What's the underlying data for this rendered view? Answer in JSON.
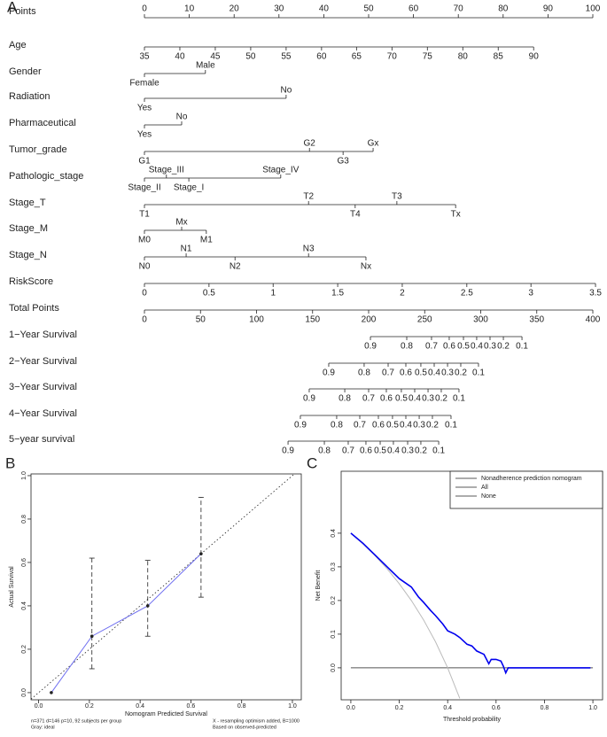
{
  "chart_data": [
    {
      "type": "nomogram",
      "panel_label": "A",
      "points_axis": {
        "label": "Points",
        "lim": [
          0,
          100
        ],
        "ticks": [
          0,
          10,
          20,
          30,
          40,
          50,
          60,
          70,
          80,
          90,
          100
        ]
      },
      "variables": [
        {
          "label": "Age",
          "levels": [
            35,
            40,
            45,
            50,
            55,
            60,
            65,
            70,
            75,
            80,
            85,
            90
          ],
          "points": [
            0,
            7.9,
            15.8,
            23.7,
            31.6,
            39.5,
            47.3,
            55.2,
            63.1,
            71.0,
            78.9,
            86.8
          ]
        },
        {
          "label": "Gender",
          "levels": [
            "Female",
            "Male"
          ],
          "points": [
            0,
            13.6
          ]
        },
        {
          "label": "Radiation",
          "levels": [
            "Yes",
            "No"
          ],
          "points": [
            0,
            31.6
          ]
        },
        {
          "label": "Pharmaceutical",
          "levels": [
            "Yes",
            "No"
          ],
          "points": [
            0,
            8.3
          ]
        },
        {
          "label": "Tumor_grade",
          "levels": [
            "G1",
            "G2",
            "G3",
            "Gx"
          ],
          "points": [
            0,
            36.8,
            44.3,
            51.0
          ]
        },
        {
          "label": "Pathologic_stage",
          "levels": [
            "Stage_II",
            "Stage_III",
            "Stage_I",
            "Stage_IV"
          ],
          "points": [
            0,
            4.9,
            9.9,
            30.4
          ]
        },
        {
          "label": "Stage_T",
          "levels": [
            "T1",
            "T2",
            "T4",
            "T3",
            "Tx"
          ],
          "points": [
            0,
            36.6,
            47.0,
            56.3,
            69.4
          ]
        },
        {
          "label": "Stage_M",
          "levels": [
            "M0",
            "Mx",
            "M1"
          ],
          "points": [
            0,
            8.3,
            13.8
          ]
        },
        {
          "label": "Stage_N",
          "levels": [
            "N0",
            "N1",
            "N2",
            "N3",
            "Nx"
          ],
          "points": [
            0,
            9.3,
            20.2,
            36.6,
            49.4
          ]
        },
        {
          "label": "RiskScore",
          "levels": [
            0,
            0.5,
            1,
            1.5,
            2,
            2.5,
            3,
            3.5
          ],
          "points": [
            0,
            14.4,
            28.7,
            43.1,
            57.5,
            71.9,
            86.2,
            100.6
          ]
        }
      ],
      "total_axis": {
        "label": "Total Points",
        "lim": [
          0,
          400
        ],
        "ticks": [
          0,
          50,
          100,
          150,
          200,
          250,
          300,
          350,
          400
        ]
      },
      "survival": [
        {
          "label": "1−Year Survival",
          "levels": [
            0.9,
            0.8,
            0.7,
            0.6,
            0.5,
            0.4,
            0.3,
            0.2,
            0.1
          ],
          "total_points": [
            201.6,
            234.0,
            256.1,
            271.9,
            284.6,
            296.4,
            308.3,
            320.2,
            336.8
          ]
        },
        {
          "label": "2−Year Survival",
          "levels": [
            0.9,
            0.8,
            0.7,
            0.6,
            0.5,
            0.4,
            0.3,
            0.2,
            0.1
          ],
          "total_points": [
            164.4,
            196.0,
            217.4,
            233.2,
            246.6,
            258.5,
            270.4,
            282.2,
            298.0
          ]
        },
        {
          "label": "3−Year Survival",
          "levels": [
            0.9,
            0.8,
            0.7,
            0.6,
            0.5,
            0.4,
            0.3,
            0.2,
            0.1
          ],
          "total_points": [
            147.0,
            178.7,
            200.0,
            215.8,
            229.2,
            241.1,
            253.0,
            264.8,
            280.6
          ]
        },
        {
          "label": "4−Year Survival",
          "levels": [
            0.9,
            0.8,
            0.7,
            0.6,
            0.5,
            0.4,
            0.3,
            0.2,
            0.1
          ],
          "total_points": [
            139.1,
            171.5,
            192.1,
            208.7,
            221.3,
            233.2,
            245.1,
            256.9,
            273.5
          ]
        },
        {
          "label": "5−year survival",
          "levels": [
            0.9,
            0.8,
            0.7,
            0.6,
            0.5,
            0.4,
            0.3,
            0.2,
            0.1
          ],
          "total_points": [
            128.1,
            160.5,
            181.8,
            197.6,
            210.3,
            222.1,
            234.8,
            246.6,
            262.5
          ]
        }
      ]
    },
    {
      "type": "calibration",
      "panel_label": "B",
      "xlabel": "Nomogram Predicted Survival",
      "ylabel": "Actual Survival",
      "xlim": [
        -0.03,
        1.035
      ],
      "ylim": [
        -0.033,
        1.008
      ],
      "xticks": [
        {
          "value": 0,
          "label": "0.0"
        },
        0.2,
        0.4,
        0.6,
        0.8,
        {
          "value": 1,
          "label": "1.0"
        }
      ],
      "yticks": [
        {
          "value": 0,
          "label": "0.0"
        },
        0.2,
        0.4,
        0.6,
        0.8,
        {
          "value": 1,
          "label": "1.0"
        }
      ],
      "series": [
        {
          "color": "#6f6ff0",
          "x": [
            0.05,
            0.21,
            0.43,
            0.64
          ],
          "values": [
            0.0,
            0.26,
            0.4,
            0.64
          ]
        }
      ],
      "error_bars": {
        "x": [
          0.21,
          0.43,
          0.64
        ],
        "lower": [
          0.11,
          0.26,
          0.44
        ],
        "upper": [
          0.62,
          0.61,
          0.9
        ]
      },
      "notes_left": [
        "n=371 d=146 p=10, 92 subjects per group",
        "Gray: ideal"
      ],
      "notes_right": [
        "X - resampling optimism added, B=1000",
        "Based on observed-predicted"
      ]
    },
    {
      "type": "line",
      "panel_label": "C",
      "xlabel": "Threshold probability",
      "ylabel": "Net Benefit",
      "xlim": [
        -0.04,
        1.04
      ],
      "ylim": [
        -0.095,
        0.584
      ],
      "xticks": [
        {
          "value": 0,
          "label": "0.0"
        },
        0.2,
        0.4,
        0.6,
        0.8,
        {
          "value": 1,
          "label": "1.0"
        }
      ],
      "yticks": [
        {
          "value": 0,
          "label": "0.0"
        },
        0.1,
        0.2,
        0.3,
        0.4
      ],
      "legend": "top-right",
      "series": [
        {
          "name": "Nonadherence prediction nomogram",
          "color": "#0000ee",
          "x": [
            0,
            0.05,
            0.1,
            0.15,
            0.2,
            0.25,
            0.28,
            0.3,
            0.33,
            0.35,
            0.38,
            0.4,
            0.43,
            0.45,
            0.48,
            0.5,
            0.52,
            0.55,
            0.57,
            0.58,
            0.6,
            0.62,
            0.63,
            0.64,
            0.65,
            0.99
          ],
          "values": [
            0.4,
            0.37,
            0.335,
            0.3,
            0.265,
            0.24,
            0.21,
            0.195,
            0.17,
            0.155,
            0.13,
            0.11,
            0.1,
            0.09,
            0.07,
            0.065,
            0.05,
            0.04,
            0.012,
            0.025,
            0.025,
            0.02,
            0.005,
            -0.015,
            0,
            0
          ]
        },
        {
          "name": "All",
          "color": "#bbbbbb",
          "x": [
            0,
            0.05,
            0.1,
            0.15,
            0.2,
            0.25,
            0.3,
            0.35,
            0.4,
            0.45
          ],
          "values": [
            0.4,
            0.368,
            0.333,
            0.294,
            0.25,
            0.2,
            0.143,
            0.077,
            0.0,
            -0.091
          ]
        },
        {
          "name": "None",
          "color": "#555555",
          "x": [
            0,
            1
          ],
          "values": [
            0,
            0
          ]
        }
      ]
    }
  ]
}
